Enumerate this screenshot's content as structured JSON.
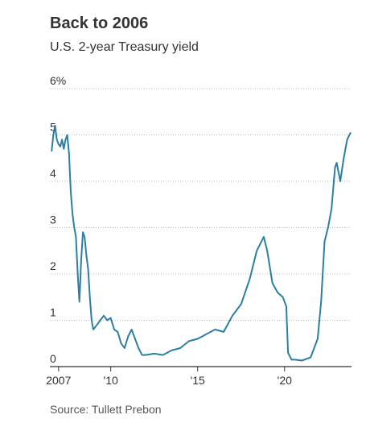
{
  "title": "Back to 2006",
  "subtitle": "U.S. 2-year Treasury yield",
  "source": "Source: Tullett Prebon",
  "colors": {
    "line": "#2c7fa3",
    "grid": "#bbbbbb",
    "axis": "#333333"
  },
  "chart_data": {
    "type": "line",
    "title": "Back to 2006",
    "subtitle": "U.S. 2-year Treasury yield",
    "xlim": [
      2006.5,
      2023.85
    ],
    "ylim": [
      0,
      6
    ],
    "y_ticks": [
      {
        "value": 0,
        "label": "0"
      },
      {
        "value": 1,
        "label": "1"
      },
      {
        "value": 2,
        "label": "2"
      },
      {
        "value": 3,
        "label": "3"
      },
      {
        "value": 4,
        "label": "4"
      },
      {
        "value": 5,
        "label": "5"
      },
      {
        "value": 6,
        "label": "6%"
      }
    ],
    "x_ticks": [
      {
        "value": 2007,
        "label": "2007"
      },
      {
        "value": 2010,
        "label": "'10"
      },
      {
        "value": 2015,
        "label": "'15"
      },
      {
        "value": 2020,
        "label": "'20"
      }
    ],
    "grid": true,
    "series": [
      {
        "x": [
          2006.6,
          2006.7,
          2006.8,
          2006.9,
          2007.0,
          2007.1,
          2007.2,
          2007.3,
          2007.4,
          2007.5,
          2007.6,
          2007.7,
          2007.8,
          2007.9,
          2008.0,
          2008.1,
          2008.2,
          2008.3,
          2008.4,
          2008.5,
          2008.6,
          2008.7,
          2008.8,
          2008.9,
          2009.0,
          2009.2,
          2009.4,
          2009.6,
          2009.8,
          2010.0,
          2010.2,
          2010.4,
          2010.6,
          2010.8,
          2011.0,
          2011.2,
          2011.4,
          2011.6,
          2011.8,
          2012.0,
          2012.5,
          2013.0,
          2013.5,
          2014.0,
          2014.5,
          2015.0,
          2015.5,
          2016.0,
          2016.5,
          2017.0,
          2017.5,
          2018.0,
          2018.4,
          2018.8,
          2019.0,
          2019.3,
          2019.6,
          2019.9,
          2020.1,
          2020.2,
          2020.4,
          2020.6,
          2021.0,
          2021.5,
          2021.9,
          2022.1,
          2022.3,
          2022.5,
          2022.7,
          2022.9,
          2023.0,
          2023.2,
          2023.4,
          2023.6,
          2023.8
        ],
        "values": [
          4.65,
          5.0,
          5.2,
          4.9,
          4.8,
          4.75,
          4.9,
          4.7,
          4.9,
          5.0,
          4.6,
          3.8,
          3.3,
          3.0,
          2.8,
          2.0,
          1.4,
          2.3,
          2.9,
          2.8,
          2.4,
          2.1,
          1.5,
          1.0,
          0.8,
          0.9,
          1.0,
          1.1,
          1.0,
          1.05,
          0.8,
          0.75,
          0.5,
          0.4,
          0.65,
          0.8,
          0.6,
          0.4,
          0.25,
          0.25,
          0.28,
          0.25,
          0.35,
          0.4,
          0.55,
          0.6,
          0.7,
          0.8,
          0.75,
          1.1,
          1.35,
          1.9,
          2.5,
          2.8,
          2.5,
          1.8,
          1.6,
          1.5,
          1.3,
          0.3,
          0.15,
          0.15,
          0.13,
          0.2,
          0.6,
          1.4,
          2.7,
          3.0,
          3.4,
          4.3,
          4.4,
          4.0,
          4.5,
          4.9,
          5.05
        ]
      }
    ]
  }
}
